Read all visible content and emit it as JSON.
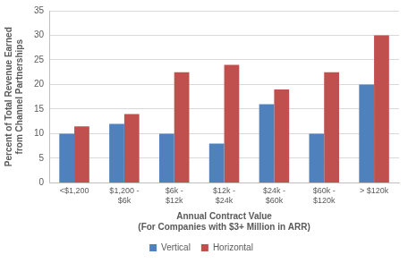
{
  "chart_data": {
    "type": "bar",
    "categories": [
      "<$1,200",
      "$1,200 - $6k",
      "$6k - $12k",
      "$12k - $24k",
      "$24k - $60k",
      "$60k - $120k",
      "> $120k"
    ],
    "series": [
      {
        "name": "Vertical",
        "color": "#4f81bd",
        "values": [
          10,
          12,
          10,
          8,
          16,
          10,
          20
        ]
      },
      {
        "name": "Horizontal",
        "color": "#c0504d",
        "values": [
          11.5,
          14,
          22.5,
          24,
          19,
          22.5,
          30
        ]
      }
    ],
    "x_label": [
      "Annual Contract Value",
      "(For Companies with $3+ Million in ARR)"
    ],
    "y_label": [
      "Percent of Total Revenue Earned",
      "from Channel Partnerships"
    ],
    "ylim": [
      0,
      35
    ],
    "yticks": [
      0,
      5,
      10,
      15,
      20,
      25,
      30,
      35
    ],
    "grid": true,
    "legend": "bottom"
  }
}
